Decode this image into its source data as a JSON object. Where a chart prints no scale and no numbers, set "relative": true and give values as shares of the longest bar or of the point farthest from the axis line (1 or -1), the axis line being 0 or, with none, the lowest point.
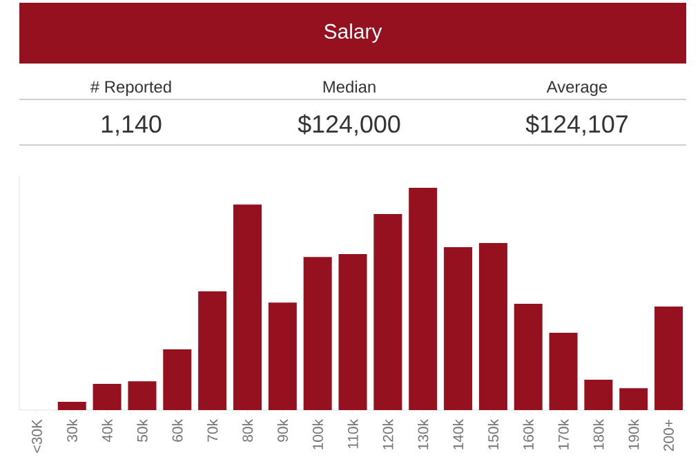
{
  "chart_data": [
    {
      "type": "other",
      "title": "Salary",
      "color": "#95111f",
      "annotations": [
        "# Reported",
        "1,140",
        "Median",
        "$124,000",
        "Average",
        "$124,107"
      ]
    },
    {
      "type": "bar",
      "relative": true,
      "color": "#95111f",
      "categories": [
        "<30K",
        "30k",
        "40k",
        "50k",
        "60k",
        "70k",
        "80k",
        "90k",
        "100k",
        "110k",
        "120k",
        "130k",
        "140k",
        "150k",
        "160k",
        "170k",
        "180k",
        "190k",
        "200+"
      ],
      "values": [
        0,
        0.037,
        0.118,
        0.13,
        0.273,
        0.534,
        0.925,
        0.484,
        0.689,
        0.702,
        0.882,
        1,
        0.733,
        0.752,
        0.478,
        0.348,
        0.137,
        0.099,
        0.466
      ]
    }
  ]
}
